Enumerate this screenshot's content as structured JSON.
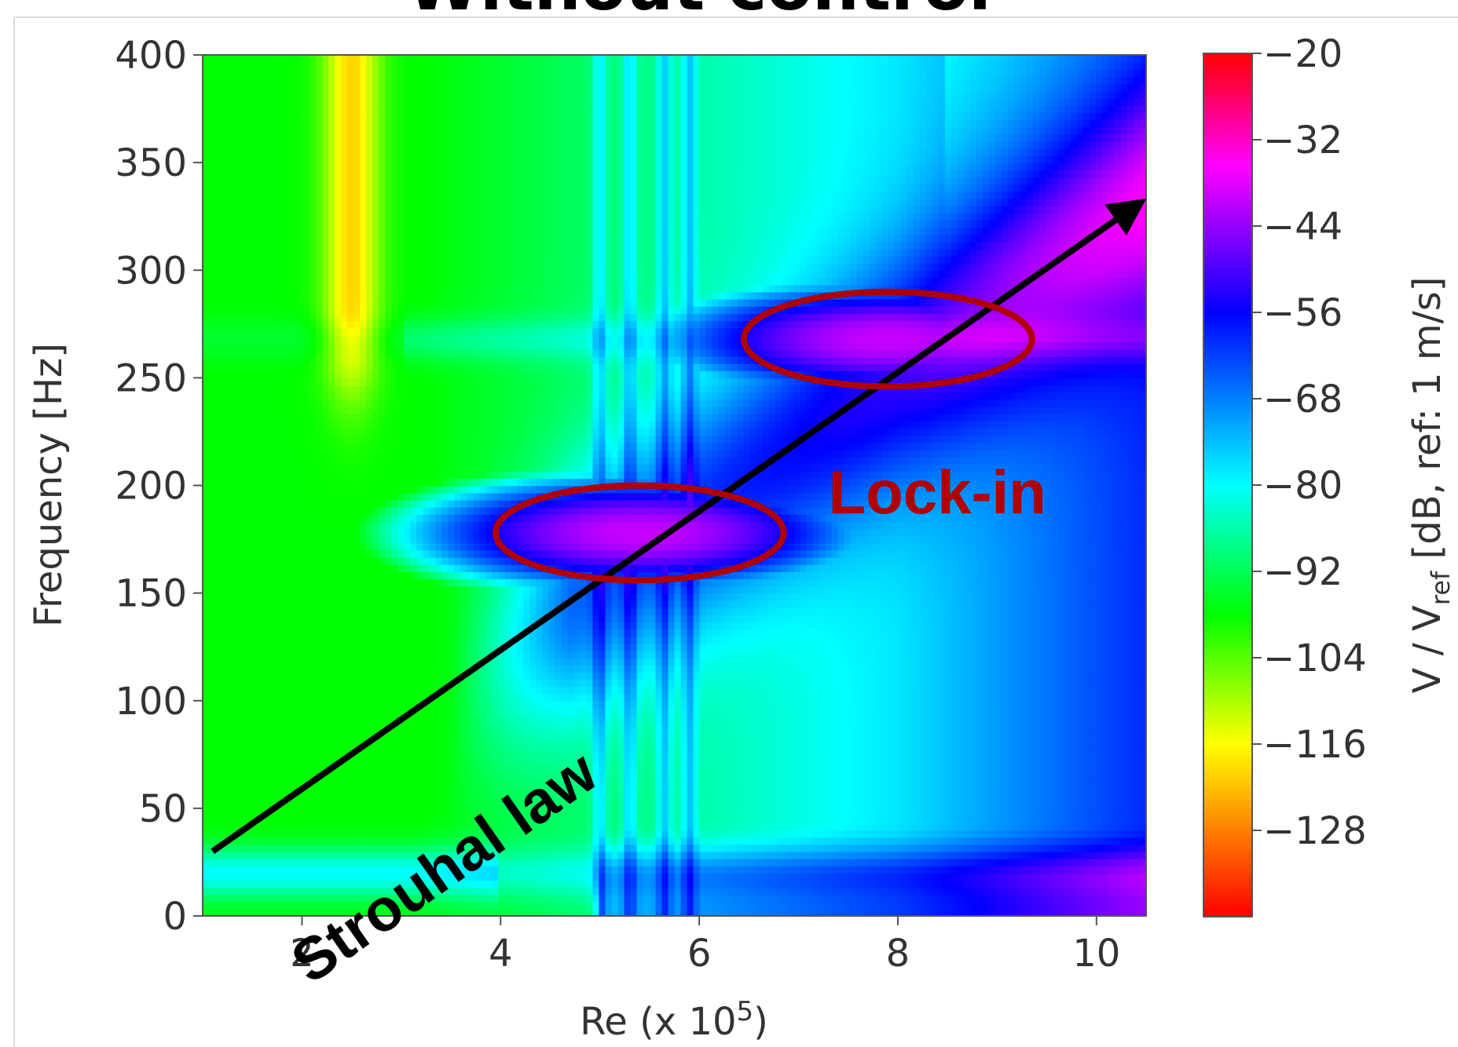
{
  "chart_data": {
    "type": "heatmap",
    "title": "Without control",
    "xlabel": "Re (x 10",
    "xlabel_exponent": "5",
    "xlabel_suffix": ")",
    "ylabel": "Frequency [Hz]",
    "colorbar_label_pre": "V / V",
    "colorbar_label_sub": "ref",
    "colorbar_label_post": " [dB, ref: 1 m/s]",
    "xlim": [
      1,
      10.5
    ],
    "ylim": [
      0,
      400
    ],
    "x_ticks": [
      2,
      4,
      6,
      8,
      10
    ],
    "y_ticks": [
      0,
      50,
      100,
      150,
      200,
      250,
      300,
      350,
      400
    ],
    "colorbar_range": [
      -140,
      -20
    ],
    "colorbar_ticks": [
      -20,
      -32,
      -44,
      -56,
      -68,
      -80,
      -92,
      -104,
      -116,
      -128
    ],
    "colormap": [
      "#ff0000",
      "#ff8000",
      "#ffff00",
      "#00ff00",
      "#00ffff",
      "#0000ff",
      "#ff00ff",
      "#ff0000"
    ],
    "annotations": {
      "strouhal_label": "Strouhal law",
      "strouhal_line": {
        "x_start": 1.1,
        "y_start": 30,
        "x_end": 10.4,
        "y_end": 330
      },
      "lockin_label": "Lock-in",
      "lockin_regions": [
        {
          "x_center": 5.4,
          "y_center": 178,
          "x_radius": 1.45,
          "y_radius": 22
        },
        {
          "x_center": 7.9,
          "y_center": 268,
          "x_radius": 1.45,
          "y_radius": 22
        }
      ]
    },
    "features": {
      "background_level": -98,
      "strouhal_ridge_level": -60,
      "lockin_level": -40,
      "vertical_bands_x": [
        5.0,
        5.3,
        5.65,
        5.9
      ],
      "horizontal_band_y": [
        20,
        268,
        178
      ],
      "yellow_band_x": 2.5
    }
  }
}
